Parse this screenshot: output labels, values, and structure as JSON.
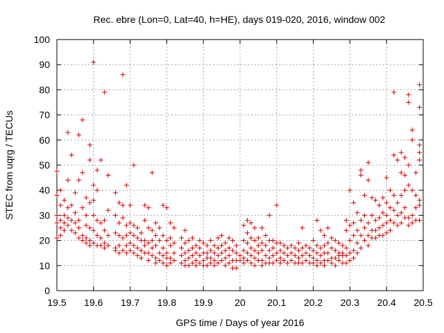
{
  "chart_data": {
    "type": "scatter",
    "title": "Rec. ebre (Lon=0, Lat=40, h=HE), days 019-020, 2016, window 002",
    "xlabel": "GPS time / Days of year 2016",
    "ylabel": "STEC from uqrg / TECUs",
    "xlim": [
      19.5,
      20.5
    ],
    "ylim": [
      0,
      100
    ],
    "xticks": [
      "19.5",
      "19.6",
      "19.7",
      "19.8",
      "19.9",
      "20",
      "20.1",
      "20.2",
      "20.3",
      "20.4",
      "20.5"
    ],
    "yticks": [
      "0",
      "10",
      "20",
      "30",
      "40",
      "50",
      "60",
      "70",
      "80",
      "90",
      "100"
    ],
    "grid": true,
    "marker": "+",
    "color": "#cc0000",
    "points": [
      [
        19.5,
        47.5
      ],
      [
        19.5,
        38
      ],
      [
        19.5,
        30
      ],
      [
        19.5,
        27
      ],
      [
        19.5,
        21
      ],
      [
        19.51,
        40
      ],
      [
        19.51,
        34
      ],
      [
        19.51,
        28
      ],
      [
        19.51,
        25
      ],
      [
        19.51,
        22
      ],
      [
        19.52,
        36
      ],
      [
        19.52,
        30
      ],
      [
        19.52,
        27
      ],
      [
        19.52,
        24
      ],
      [
        19.53,
        63
      ],
      [
        19.53,
        44
      ],
      [
        19.53,
        33
      ],
      [
        19.53,
        29
      ],
      [
        19.53,
        26
      ],
      [
        19.54,
        54
      ],
      [
        19.54,
        34
      ],
      [
        19.54,
        28
      ],
      [
        19.54,
        24
      ],
      [
        19.55,
        39
      ],
      [
        19.55,
        31
      ],
      [
        19.55,
        27
      ],
      [
        19.55,
        23
      ],
      [
        19.56,
        62
      ],
      [
        19.56,
        44
      ],
      [
        19.56,
        28
      ],
      [
        19.56,
        25
      ],
      [
        19.56,
        21
      ],
      [
        19.57,
        68
      ],
      [
        19.57,
        47
      ],
      [
        19.57,
        33
      ],
      [
        19.57,
        22
      ],
      [
        19.57,
        20
      ],
      [
        19.58,
        37
      ],
      [
        19.58,
        30
      ],
      [
        19.58,
        26
      ],
      [
        19.58,
        21
      ],
      [
        19.58,
        19
      ],
      [
        19.59,
        58
      ],
      [
        19.59,
        52
      ],
      [
        19.59,
        35
      ],
      [
        19.59,
        25
      ],
      [
        19.59,
        20
      ],
      [
        19.59,
        18
      ],
      [
        19.6,
        91
      ],
      [
        19.6,
        42
      ],
      [
        19.6,
        36
      ],
      [
        19.6,
        30
      ],
      [
        19.6,
        24
      ],
      [
        19.6,
        19
      ],
      [
        19.61,
        48
      ],
      [
        19.61,
        40
      ],
      [
        19.61,
        28
      ],
      [
        19.61,
        22
      ],
      [
        19.61,
        18
      ],
      [
        19.62,
        52
      ],
      [
        19.62,
        27
      ],
      [
        19.62,
        21
      ],
      [
        19.62,
        18
      ],
      [
        19.63,
        79
      ],
      [
        19.63,
        28
      ],
      [
        19.63,
        24
      ],
      [
        19.63,
        19
      ],
      [
        19.63,
        17
      ],
      [
        19.64,
        46
      ],
      [
        19.64,
        32
      ],
      [
        19.64,
        22
      ],
      [
        19.64,
        18
      ],
      [
        19.66,
        39
      ],
      [
        19.66,
        30
      ],
      [
        19.66,
        23
      ],
      [
        19.66,
        17
      ],
      [
        19.66,
        16
      ],
      [
        19.67,
        35
      ],
      [
        19.67,
        27
      ],
      [
        19.67,
        22
      ],
      [
        19.67,
        18
      ],
      [
        19.67,
        15
      ],
      [
        19.68,
        86
      ],
      [
        19.68,
        34
      ],
      [
        19.68,
        29
      ],
      [
        19.68,
        21
      ],
      [
        19.68,
        16
      ],
      [
        19.69,
        42
      ],
      [
        19.69,
        26
      ],
      [
        19.69,
        22
      ],
      [
        19.69,
        18
      ],
      [
        19.69,
        15
      ],
      [
        19.7,
        34
      ],
      [
        19.7,
        27
      ],
      [
        19.7,
        23
      ],
      [
        19.7,
        19
      ],
      [
        19.7,
        16
      ],
      [
        19.71,
        50
      ],
      [
        19.71,
        26
      ],
      [
        19.71,
        22
      ],
      [
        19.71,
        18
      ],
      [
        19.71,
        15
      ],
      [
        19.72,
        25
      ],
      [
        19.72,
        21
      ],
      [
        19.72,
        17
      ],
      [
        19.72,
        14
      ],
      [
        19.73,
        23
      ],
      [
        19.73,
        20
      ],
      [
        19.73,
        16
      ],
      [
        19.73,
        13
      ],
      [
        19.74,
        34
      ],
      [
        19.74,
        28
      ],
      [
        19.74,
        20
      ],
      [
        19.74,
        18
      ],
      [
        19.74,
        15
      ],
      [
        19.75,
        33
      ],
      [
        19.75,
        25
      ],
      [
        19.75,
        19
      ],
      [
        19.75,
        15
      ],
      [
        19.75,
        12
      ],
      [
        19.76,
        47
      ],
      [
        19.76,
        24
      ],
      [
        19.76,
        20
      ],
      [
        19.76,
        17
      ],
      [
        19.76,
        14
      ],
      [
        19.77,
        27
      ],
      [
        19.77,
        22
      ],
      [
        19.77,
        18
      ],
      [
        19.77,
        13
      ],
      [
        19.77,
        11
      ],
      [
        19.78,
        25
      ],
      [
        19.78,
        20
      ],
      [
        19.78,
        15
      ],
      [
        19.78,
        12
      ],
      [
        19.79,
        34
      ],
      [
        19.79,
        22
      ],
      [
        19.79,
        17
      ],
      [
        19.79,
        14
      ],
      [
        19.79,
        11
      ],
      [
        19.8,
        33
      ],
      [
        19.8,
        20
      ],
      [
        19.8,
        15
      ],
      [
        19.8,
        13
      ],
      [
        19.8,
        10
      ],
      [
        19.81,
        27
      ],
      [
        19.81,
        21
      ],
      [
        19.81,
        18
      ],
      [
        19.81,
        13
      ],
      [
        19.81,
        11
      ],
      [
        19.82,
        25
      ],
      [
        19.82,
        19
      ],
      [
        19.82,
        15
      ],
      [
        19.82,
        12
      ],
      [
        19.84,
        21
      ],
      [
        19.84,
        17
      ],
      [
        19.84,
        14
      ],
      [
        19.84,
        11
      ],
      [
        19.85,
        24
      ],
      [
        19.85,
        19
      ],
      [
        19.85,
        15
      ],
      [
        19.85,
        12
      ],
      [
        19.85,
        10
      ],
      [
        19.86,
        20
      ],
      [
        19.86,
        16
      ],
      [
        19.86,
        13
      ],
      [
        19.86,
        10
      ],
      [
        19.87,
        21
      ],
      [
        19.87,
        17
      ],
      [
        19.87,
        14
      ],
      [
        19.87,
        11
      ],
      [
        19.88,
        18
      ],
      [
        19.88,
        15
      ],
      [
        19.88,
        12
      ],
      [
        19.88,
        10
      ],
      [
        19.89,
        20
      ],
      [
        19.89,
        17
      ],
      [
        19.89,
        14
      ],
      [
        19.89,
        11
      ],
      [
        19.9,
        19
      ],
      [
        19.9,
        15
      ],
      [
        19.9,
        12
      ],
      [
        19.9,
        10
      ],
      [
        19.91,
        18
      ],
      [
        19.91,
        15
      ],
      [
        19.91,
        13
      ],
      [
        19.91,
        10
      ],
      [
        19.92,
        20
      ],
      [
        19.92,
        16
      ],
      [
        19.92,
        13
      ],
      [
        19.92,
        11
      ],
      [
        19.93,
        18
      ],
      [
        19.93,
        15
      ],
      [
        19.93,
        12
      ],
      [
        19.93,
        10
      ],
      [
        19.94,
        21
      ],
      [
        19.94,
        17
      ],
      [
        19.94,
        14
      ],
      [
        19.94,
        11
      ],
      [
        19.95,
        22
      ],
      [
        19.95,
        18
      ],
      [
        19.95,
        15
      ],
      [
        19.95,
        12
      ],
      [
        19.96,
        19
      ],
      [
        19.96,
        16
      ],
      [
        19.96,
        13
      ],
      [
        19.96,
        10
      ],
      [
        19.97,
        21
      ],
      [
        19.97,
        17
      ],
      [
        19.97,
        14
      ],
      [
        19.97,
        11
      ],
      [
        19.98,
        20
      ],
      [
        19.98,
        16
      ],
      [
        19.98,
        12
      ],
      [
        19.98,
        9
      ],
      [
        19.99,
        18
      ],
      [
        19.99,
        15
      ],
      [
        19.99,
        12
      ],
      [
        19.99,
        9
      ],
      [
        20.0,
        14
      ],
      [
        20.0,
        12
      ],
      [
        20.01,
        26
      ],
      [
        20.01,
        20
      ],
      [
        20.01,
        16
      ],
      [
        20.01,
        13
      ],
      [
        20.01,
        11
      ],
      [
        20.02,
        28
      ],
      [
        20.02,
        23
      ],
      [
        20.02,
        19
      ],
      [
        20.02,
        15
      ],
      [
        20.02,
        12
      ],
      [
        20.03,
        27
      ],
      [
        20.03,
        21
      ],
      [
        20.03,
        17
      ],
      [
        20.03,
        14
      ],
      [
        20.03,
        11
      ],
      [
        20.04,
        25
      ],
      [
        20.04,
        20
      ],
      [
        20.04,
        16
      ],
      [
        20.04,
        13
      ],
      [
        20.04,
        10
      ],
      [
        20.05,
        21
      ],
      [
        20.05,
        18
      ],
      [
        20.05,
        15
      ],
      [
        20.05,
        12
      ],
      [
        20.06,
        25
      ],
      [
        20.06,
        19
      ],
      [
        20.06,
        16
      ],
      [
        20.06,
        12
      ],
      [
        20.06,
        10
      ],
      [
        20.07,
        22
      ],
      [
        20.07,
        18
      ],
      [
        20.07,
        14
      ],
      [
        20.07,
        11
      ],
      [
        20.08,
        30
      ],
      [
        20.08,
        20
      ],
      [
        20.08,
        16
      ],
      [
        20.08,
        13
      ],
      [
        20.08,
        11
      ],
      [
        20.09,
        20
      ],
      [
        20.09,
        17
      ],
      [
        20.09,
        14
      ],
      [
        20.09,
        11
      ],
      [
        20.1,
        34
      ],
      [
        20.1,
        19
      ],
      [
        20.1,
        15
      ],
      [
        20.1,
        12
      ],
      [
        20.11,
        19
      ],
      [
        20.11,
        16
      ],
      [
        20.11,
        13
      ],
      [
        20.11,
        11
      ],
      [
        20.12,
        18
      ],
      [
        20.12,
        15
      ],
      [
        20.12,
        12
      ],
      [
        20.13,
        17
      ],
      [
        20.13,
        14
      ],
      [
        20.13,
        11
      ],
      [
        20.14,
        18
      ],
      [
        20.14,
        15
      ],
      [
        20.14,
        12
      ],
      [
        20.15,
        17
      ],
      [
        20.15,
        14
      ],
      [
        20.15,
        11
      ],
      [
        20.16,
        19
      ],
      [
        20.16,
        16
      ],
      [
        20.16,
        13
      ],
      [
        20.16,
        11
      ],
      [
        20.17,
        25
      ],
      [
        20.17,
        17
      ],
      [
        20.17,
        14
      ],
      [
        20.17,
        11
      ],
      [
        20.18,
        18
      ],
      [
        20.18,
        15
      ],
      [
        20.18,
        12
      ],
      [
        20.19,
        17
      ],
      [
        20.19,
        14
      ],
      [
        20.19,
        11
      ],
      [
        20.2,
        20
      ],
      [
        20.2,
        16
      ],
      [
        20.2,
        13
      ],
      [
        20.2,
        11
      ],
      [
        20.21,
        28
      ],
      [
        20.21,
        18
      ],
      [
        20.21,
        15
      ],
      [
        20.21,
        12
      ],
      [
        20.21,
        10
      ],
      [
        20.22,
        24
      ],
      [
        20.22,
        17
      ],
      [
        20.22,
        14
      ],
      [
        20.22,
        11
      ],
      [
        20.23,
        22
      ],
      [
        20.23,
        18
      ],
      [
        20.23,
        15
      ],
      [
        20.23,
        12
      ],
      [
        20.23,
        10
      ],
      [
        20.24,
        25
      ],
      [
        20.24,
        19
      ],
      [
        20.24,
        15
      ],
      [
        20.24,
        12
      ],
      [
        20.25,
        21
      ],
      [
        20.25,
        17
      ],
      [
        20.25,
        13
      ],
      [
        20.25,
        11
      ],
      [
        20.26,
        20
      ],
      [
        20.26,
        16
      ],
      [
        20.26,
        13
      ],
      [
        20.26,
        10
      ],
      [
        20.27,
        19
      ],
      [
        20.27,
        15
      ],
      [
        20.27,
        14
      ],
      [
        20.27,
        12
      ],
      [
        20.28,
        18
      ],
      [
        20.28,
        15
      ],
      [
        20.28,
        14
      ],
      [
        20.28,
        11
      ],
      [
        20.29,
        28
      ],
      [
        20.29,
        24
      ],
      [
        20.29,
        17
      ],
      [
        20.29,
        14
      ],
      [
        20.29,
        11
      ],
      [
        20.3,
        40
      ],
      [
        20.3,
        26
      ],
      [
        20.3,
        20
      ],
      [
        20.3,
        15
      ],
      [
        20.3,
        12
      ],
      [
        20.31,
        35
      ],
      [
        20.31,
        27
      ],
      [
        20.31,
        22
      ],
      [
        20.31,
        16
      ],
      [
        20.31,
        13
      ],
      [
        20.32,
        31
      ],
      [
        20.32,
        24
      ],
      [
        20.32,
        19
      ],
      [
        20.32,
        15
      ],
      [
        20.33,
        48
      ],
      [
        20.33,
        46
      ],
      [
        20.33,
        28
      ],
      [
        20.33,
        22
      ],
      [
        20.33,
        17
      ],
      [
        20.34,
        38
      ],
      [
        20.34,
        30
      ],
      [
        20.34,
        25
      ],
      [
        20.34,
        20
      ],
      [
        20.35,
        51
      ],
      [
        20.35,
        44
      ],
      [
        20.35,
        27
      ],
      [
        20.35,
        22
      ],
      [
        20.35,
        18
      ],
      [
        20.36,
        37
      ],
      [
        20.36,
        30
      ],
      [
        20.36,
        24
      ],
      [
        20.36,
        21
      ],
      [
        20.37,
        36
      ],
      [
        20.37,
        28
      ],
      [
        20.37,
        24
      ],
      [
        20.37,
        21
      ],
      [
        20.38,
        34
      ],
      [
        20.38,
        29
      ],
      [
        20.38,
        25
      ],
      [
        20.38,
        22
      ],
      [
        20.39,
        37
      ],
      [
        20.39,
        31
      ],
      [
        20.39,
        26
      ],
      [
        20.39,
        22
      ],
      [
        20.4,
        45
      ],
      [
        20.4,
        35
      ],
      [
        20.4,
        30
      ],
      [
        20.4,
        27
      ],
      [
        20.4,
        23
      ],
      [
        20.41,
        40
      ],
      [
        20.41,
        33
      ],
      [
        20.41,
        28
      ],
      [
        20.41,
        24
      ],
      [
        20.42,
        79
      ],
      [
        20.42,
        54
      ],
      [
        20.42,
        38
      ],
      [
        20.42,
        32
      ],
      [
        20.42,
        27
      ],
      [
        20.43,
        52
      ],
      [
        20.43,
        35
      ],
      [
        20.43,
        30
      ],
      [
        20.43,
        26
      ],
      [
        20.44,
        55
      ],
      [
        20.44,
        47
      ],
      [
        20.44,
        38
      ],
      [
        20.44,
        31
      ],
      [
        20.44,
        27
      ],
      [
        20.45,
        53
      ],
      [
        20.45,
        46
      ],
      [
        20.45,
        40
      ],
      [
        20.45,
        33
      ],
      [
        20.45,
        29
      ],
      [
        20.46,
        78
      ],
      [
        20.46,
        75
      ],
      [
        20.46,
        50
      ],
      [
        20.46,
        42
      ],
      [
        20.46,
        29
      ],
      [
        20.46,
        26
      ],
      [
        20.47,
        64
      ],
      [
        20.47,
        60
      ],
      [
        20.47,
        40
      ],
      [
        20.47,
        30
      ],
      [
        20.47,
        27
      ],
      [
        20.48,
        47
      ],
      [
        20.48,
        38
      ],
      [
        20.48,
        33
      ],
      [
        20.48,
        28
      ],
      [
        20.49,
        82
      ],
      [
        20.49,
        73
      ],
      [
        20.49,
        58
      ],
      [
        20.49,
        55
      ],
      [
        20.49,
        52
      ],
      [
        20.49,
        36
      ],
      [
        20.49,
        34
      ],
      [
        20.49,
        28
      ]
    ]
  }
}
